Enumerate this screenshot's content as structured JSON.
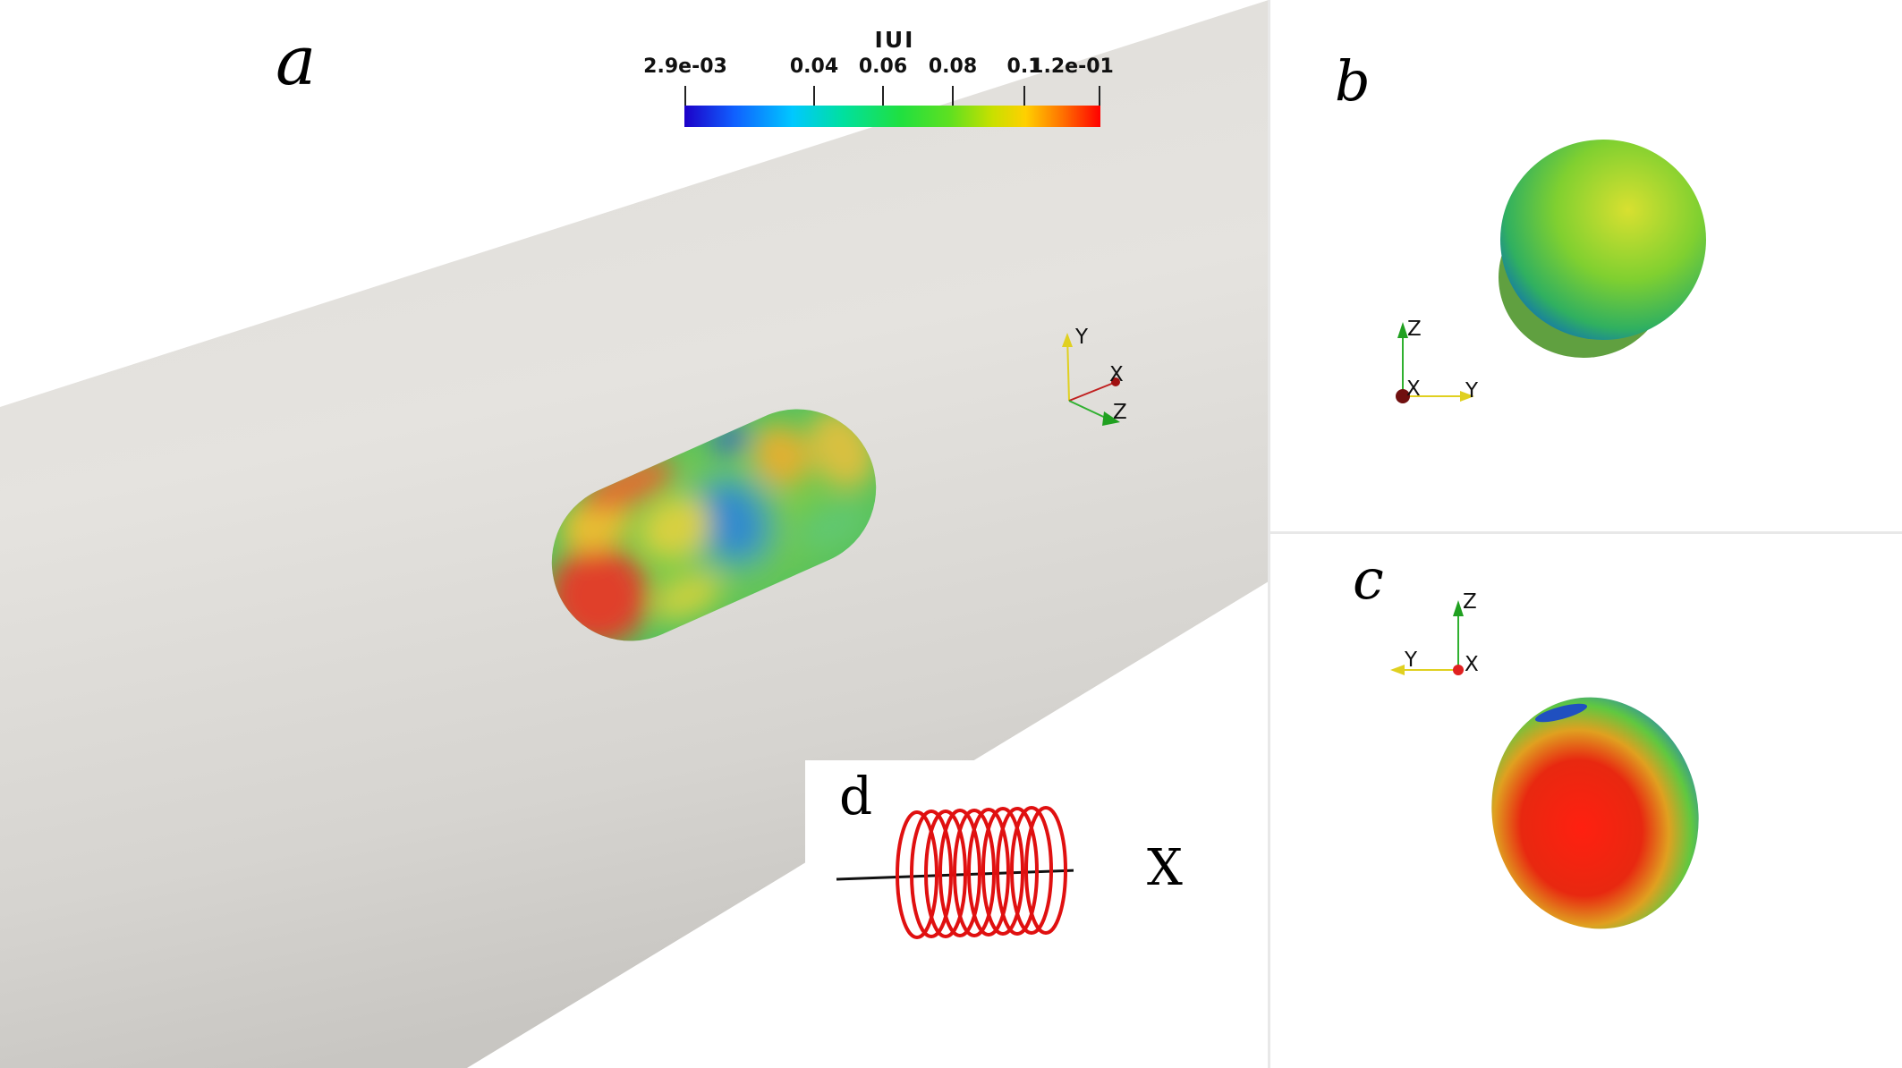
{
  "panels": {
    "a": {
      "label": "a"
    },
    "b": {
      "label": "b"
    },
    "c": {
      "label": "c"
    },
    "d": {
      "label": "d",
      "axis_label": "X"
    }
  },
  "colorbar": {
    "title": "IUI",
    "ticks": [
      "2.9e-03",
      "0.04",
      "0.06",
      "0.08",
      "0.1",
      "1.2e-01"
    ],
    "colors": [
      "#1c00c8",
      "#00c8ff",
      "#20e040",
      "#ffd000",
      "#ff0000"
    ]
  },
  "axes_triad": {
    "a": {
      "y": "Y",
      "x": "X",
      "z": "Z"
    },
    "b": {
      "z": "Z",
      "x": "X",
      "y": "Y"
    },
    "c": {
      "z": "Z",
      "y": "Y",
      "x": "X"
    }
  }
}
